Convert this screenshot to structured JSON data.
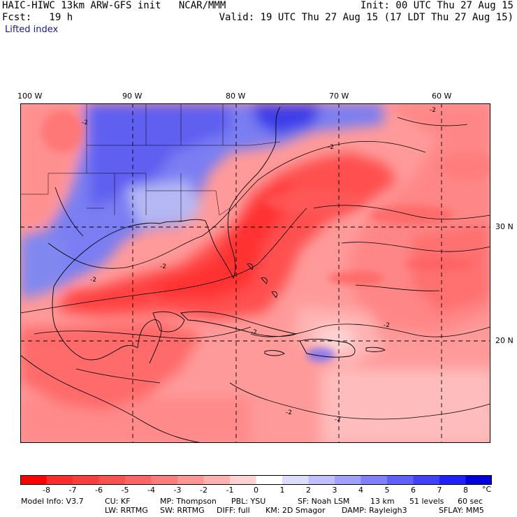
{
  "header": {
    "line1_left": "HAIC-HIWC 13km ARW-GFS init   NCAR/MMM",
    "line1_right": "Init: 00 UTC Thu 27 Aug 15",
    "line2_left": "Fcst:   19 h",
    "line2_right": "Valid: 19 UTC Thu 27 Aug 15 (17 LDT Thu 27 Aug 15)",
    "field": "Lifted index"
  },
  "lon_labels": [
    "100 W",
    "90 W",
    "80 W",
    "70 W",
    "60 W"
  ],
  "lat_labels": [
    "30 N",
    "20 N"
  ],
  "colorbar": {
    "labels": [
      "-8",
      "-7",
      "-6",
      "-5",
      "-4",
      "-3",
      "-2",
      "-1",
      "0",
      "1",
      "2",
      "3",
      "4",
      "5",
      "6",
      "7",
      "8"
    ],
    "unit": "°C",
    "colors": [
      "#ff0000",
      "#ff2a2a",
      "#ff3c3c",
      "#ff5050",
      "#ff6464",
      "#ff7c7c",
      "#ff9696",
      "#ffb0b0",
      "#ffd2d2",
      "#ffffff",
      "#dcdcff",
      "#c0c0ff",
      "#a0a0ff",
      "#8080ff",
      "#6060ff",
      "#4040ff",
      "#2020ff",
      "#0000e0"
    ]
  },
  "model_info": {
    "line1": [
      "Model Info: V3.7",
      "CU: KF",
      "MP: Thompson",
      "PBL: YSU",
      "SF: Noah LSM",
      "13 km",
      "51 levels",
      "60 sec"
    ],
    "line2": [
      "LW: RRTMG",
      "SW: RRTMG",
      "DIFF: full",
      "KM: 2D Smagor",
      "DAMP: Rayleigh3",
      "SFLAY: MM5"
    ]
  },
  "contour_label": "-2"
}
